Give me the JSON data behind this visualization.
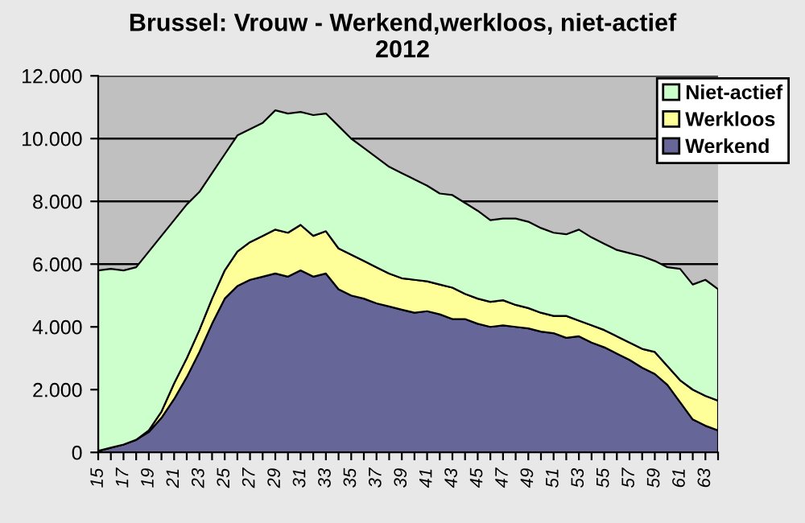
{
  "chart_data": {
    "type": "area",
    "stacked": true,
    "title": "Brussel: Vrouw - Werkend,werkloos, niet-actief\n2012",
    "categories": [
      "15",
      null,
      "17",
      null,
      "19",
      null,
      "21",
      null,
      "23",
      null,
      "25",
      null,
      "27",
      null,
      "29",
      null,
      "31",
      null,
      "33",
      null,
      "35",
      null,
      "37",
      null,
      "39",
      null,
      "41",
      null,
      "43",
      null,
      "45",
      null,
      "47",
      null,
      "49",
      null,
      "51",
      null,
      "53",
      null,
      "55",
      null,
      "57",
      null,
      "59",
      null,
      "61",
      null,
      "63",
      null
    ],
    "series": [
      {
        "name": "Werkend",
        "color": "#666699",
        "values": [
          50,
          150,
          250,
          400,
          650,
          1100,
          1700,
          2400,
          3200,
          4100,
          4900,
          5300,
          5500,
          5600,
          5700,
          5600,
          5800,
          5600,
          5700,
          5200,
          5000,
          4900,
          4750,
          4650,
          4550,
          4450,
          4500,
          4400,
          4250,
          4250,
          4100,
          4000,
          4050,
          4000,
          3950,
          3850,
          3800,
          3650,
          3700,
          3500,
          3350,
          3150,
          2950,
          2700,
          2500,
          2150,
          1600,
          1050,
          850,
          700
        ]
      },
      {
        "name": "Werkloos",
        "color": "#ffff99",
        "values": [
          0,
          0,
          0,
          0,
          50,
          200,
          500,
          600,
          700,
          800,
          900,
          1100,
          1200,
          1300,
          1400,
          1400,
          1450,
          1300,
          1350,
          1300,
          1300,
          1200,
          1150,
          1050,
          1000,
          1050,
          950,
          950,
          1000,
          800,
          800,
          800,
          800,
          700,
          650,
          600,
          550,
          700,
          500,
          550,
          550,
          550,
          550,
          600,
          700,
          600,
          700,
          950,
          950,
          950
        ]
      },
      {
        "name": "Niet-actief",
        "color": "#ccffcc",
        "values": [
          5750,
          5700,
          5550,
          5500,
          5700,
          5600,
          5200,
          4900,
          4400,
          4000,
          3700,
          3700,
          3600,
          3600,
          3800,
          3800,
          3600,
          3850,
          3750,
          3900,
          3700,
          3600,
          3500,
          3400,
          3350,
          3200,
          3050,
          2900,
          2950,
          2900,
          2800,
          2600,
          2600,
          2750,
          2750,
          2700,
          2650,
          2600,
          2900,
          2800,
          2750,
          2750,
          2850,
          2950,
          2900,
          3150,
          3550,
          3350,
          3700,
          3550
        ]
      }
    ],
    "ylim": [
      0,
      12000
    ],
    "yticks": [
      0,
      {
        "value": 2000,
        "label": "2.000"
      },
      {
        "value": 4000,
        "label": "4.000"
      },
      {
        "value": 6000,
        "label": "6.000"
      },
      {
        "value": 8000,
        "label": "8.000"
      },
      {
        "value": 10000,
        "label": "10.000"
      },
      {
        "value": 12000,
        "label": "12.000"
      }
    ],
    "grid": "y",
    "legend": "top right"
  }
}
